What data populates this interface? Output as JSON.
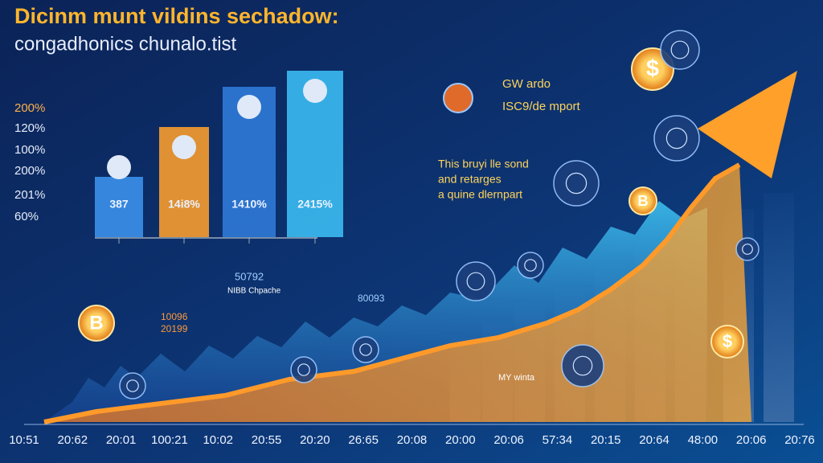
{
  "header": {
    "title": "Dicinm munt vildins sechadow:",
    "subtitle": "congadhonics chunalo.tist"
  },
  "bar_panel": {
    "axis_labels": [
      "200%",
      "120%",
      "100%",
      "200%",
      "201%",
      "60%"
    ],
    "bar_labels": [
      "387",
      "14i8%",
      "1410%",
      "2415%"
    ]
  },
  "callouts": [
    {
      "lines": [
        "GW ardo",
        "ISC9/de mport"
      ]
    },
    {
      "lines": [
        "This bruyi lle sond",
        "and retarges",
        "a quine dlernpart"
      ]
    }
  ],
  "annotations": [
    "50792",
    "NIBB Chpache",
    "10096",
    "20199",
    "80093",
    "MY winta"
  ],
  "icons": {
    "dollar": "$",
    "bitcoin": "B"
  },
  "time_labels": [
    "10:51",
    "20:62",
    "20:01",
    "100:21",
    "10:02",
    "20:55",
    "20:20",
    "26:65",
    "20:08",
    "20:00",
    "20:06",
    "57:34",
    "20:15",
    "20:64",
    "48:00",
    "20:06",
    "20:76"
  ]
}
